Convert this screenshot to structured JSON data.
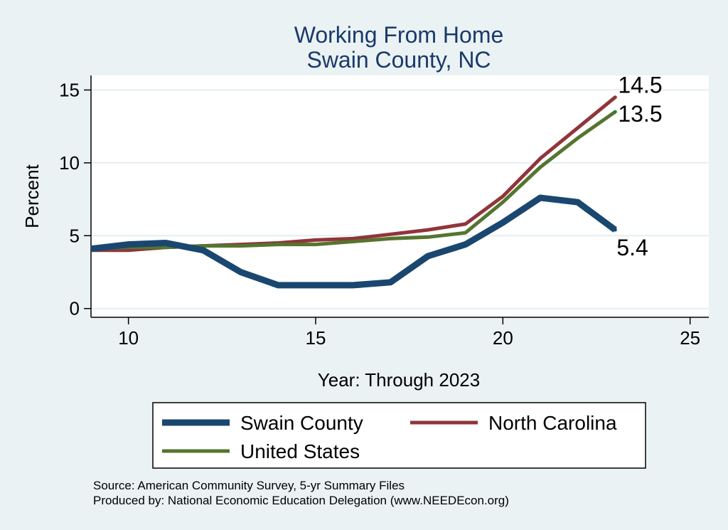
{
  "chart_data": {
    "type": "line",
    "title": "Working From Home",
    "subtitle": "Swain County, NC",
    "xlabel": "Year: Through 2023",
    "ylabel": "Percent",
    "xlim": [
      9,
      25.5
    ],
    "ylim": [
      -0.6,
      16
    ],
    "xticks": [
      10,
      15,
      20,
      25
    ],
    "yticks": [
      0,
      5,
      10,
      15
    ],
    "grid": true,
    "legend_position": "bottom",
    "series": [
      {
        "name": "Swain County",
        "color": "#1a476f",
        "x": [
          9,
          10,
          11,
          12,
          13,
          14,
          15,
          16,
          17,
          18,
          19,
          20,
          21,
          22,
          23
        ],
        "values": [
          4.1,
          4.4,
          4.5,
          4.0,
          2.5,
          1.6,
          1.6,
          1.6,
          1.8,
          3.6,
          4.4,
          5.9,
          7.6,
          7.3,
          5.4
        ],
        "end_label": "5.4"
      },
      {
        "name": "North Carolina",
        "color": "#90353b",
        "x": [
          9,
          10,
          11,
          12,
          13,
          14,
          15,
          16,
          17,
          18,
          19,
          20,
          21,
          22,
          23
        ],
        "values": [
          4.0,
          4.0,
          4.2,
          4.3,
          4.4,
          4.5,
          4.7,
          4.8,
          5.1,
          5.4,
          5.8,
          7.7,
          10.3,
          12.4,
          14.5
        ],
        "end_label": "14.5"
      },
      {
        "name": "United States",
        "color": "#55752f",
        "x": [
          9,
          10,
          11,
          12,
          13,
          14,
          15,
          16,
          17,
          18,
          19,
          20,
          21,
          22,
          23
        ],
        "values": [
          4.1,
          4.2,
          4.2,
          4.3,
          4.3,
          4.4,
          4.4,
          4.6,
          4.8,
          4.9,
          5.2,
          7.3,
          9.7,
          11.7,
          13.5
        ],
        "end_label": "13.5"
      }
    ],
    "notes": [
      "Source: American Community Survey, 5-yr Summary Files",
      "Produced by: National Economic Education Delegation (www.NEEDEcon.org)"
    ]
  }
}
